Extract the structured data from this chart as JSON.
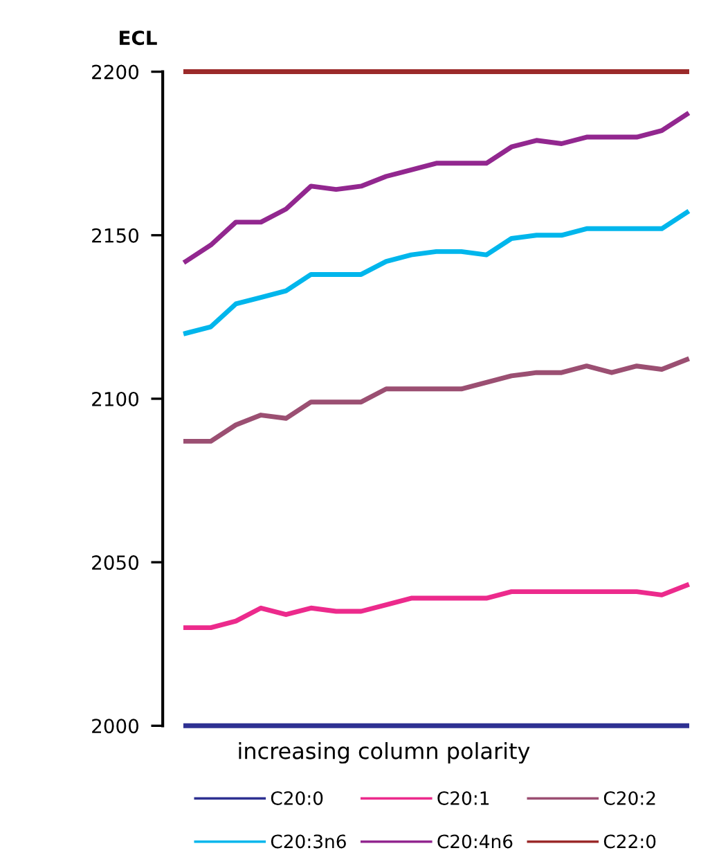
{
  "chart_data": {
    "type": "line",
    "ylabel": "ECL",
    "xlabel": "increasing column polarity",
    "categories": [
      null,
      null,
      null,
      null,
      null,
      null,
      null,
      null,
      null,
      null,
      null,
      null,
      null,
      null,
      null,
      null,
      null,
      null,
      null,
      null,
      null
    ],
    "ylim": [
      2000,
      2200
    ],
    "yticks": [
      2000,
      2050,
      2100,
      2150,
      2200
    ],
    "grid": false,
    "legend": "bottom",
    "tick_labels": "y",
    "marker": "none",
    "line_style": "solid",
    "series": [
      {
        "name": "C20:0",
        "color": "#2e3192",
        "values": [
          2000,
          2000,
          2000,
          2000,
          2000,
          2000,
          2000,
          2000,
          2000,
          2000,
          2000,
          2000,
          2000,
          2000,
          2000,
          2000,
          2000,
          2000,
          2000,
          2000,
          2000
        ]
      },
      {
        "name": "C20:1",
        "color": "#ec2a8c",
        "values": [
          2030,
          2030,
          2032,
          2036,
          2034,
          2036,
          2035,
          2035,
          2037,
          2039,
          2039,
          2039,
          2039,
          2041,
          2041,
          2041,
          2041,
          2041,
          2041,
          2040,
          2043
        ]
      },
      {
        "name": "C20:2",
        "color": "#9b4f72",
        "values": [
          2087,
          2087,
          2092,
          2095,
          2094,
          2099,
          2099,
          2099,
          2103,
          2103,
          2103,
          2103,
          2105,
          2107,
          2108,
          2108,
          2110,
          2108,
          2110,
          2109,
          2112
        ]
      },
      {
        "name": "C20:3n6",
        "color": "#00b6ec",
        "values": [
          2120,
          2122,
          2129,
          2131,
          2133,
          2138,
          2138,
          2138,
          2142,
          2144,
          2145,
          2145,
          2144,
          2149,
          2150,
          2150,
          2152,
          2152,
          2152,
          2152,
          2157
        ]
      },
      {
        "name": "C20:4n6",
        "color": "#92278f",
        "values": [
          2142,
          2147,
          2154,
          2154,
          2158,
          2165,
          2164,
          2165,
          2168,
          2170,
          2172,
          2172,
          2172,
          2177,
          2179,
          2178,
          2180,
          2180,
          2180,
          2182,
          2187
        ]
      },
      {
        "name": "C22:0",
        "color": "#9b2a2a",
        "values": [
          2200,
          2200,
          2200,
          2200,
          2200,
          2200,
          2200,
          2200,
          2200,
          2200,
          2200,
          2200,
          2200,
          2200,
          2200,
          2200,
          2200,
          2200,
          2200,
          2200,
          2200
        ]
      }
    ]
  }
}
